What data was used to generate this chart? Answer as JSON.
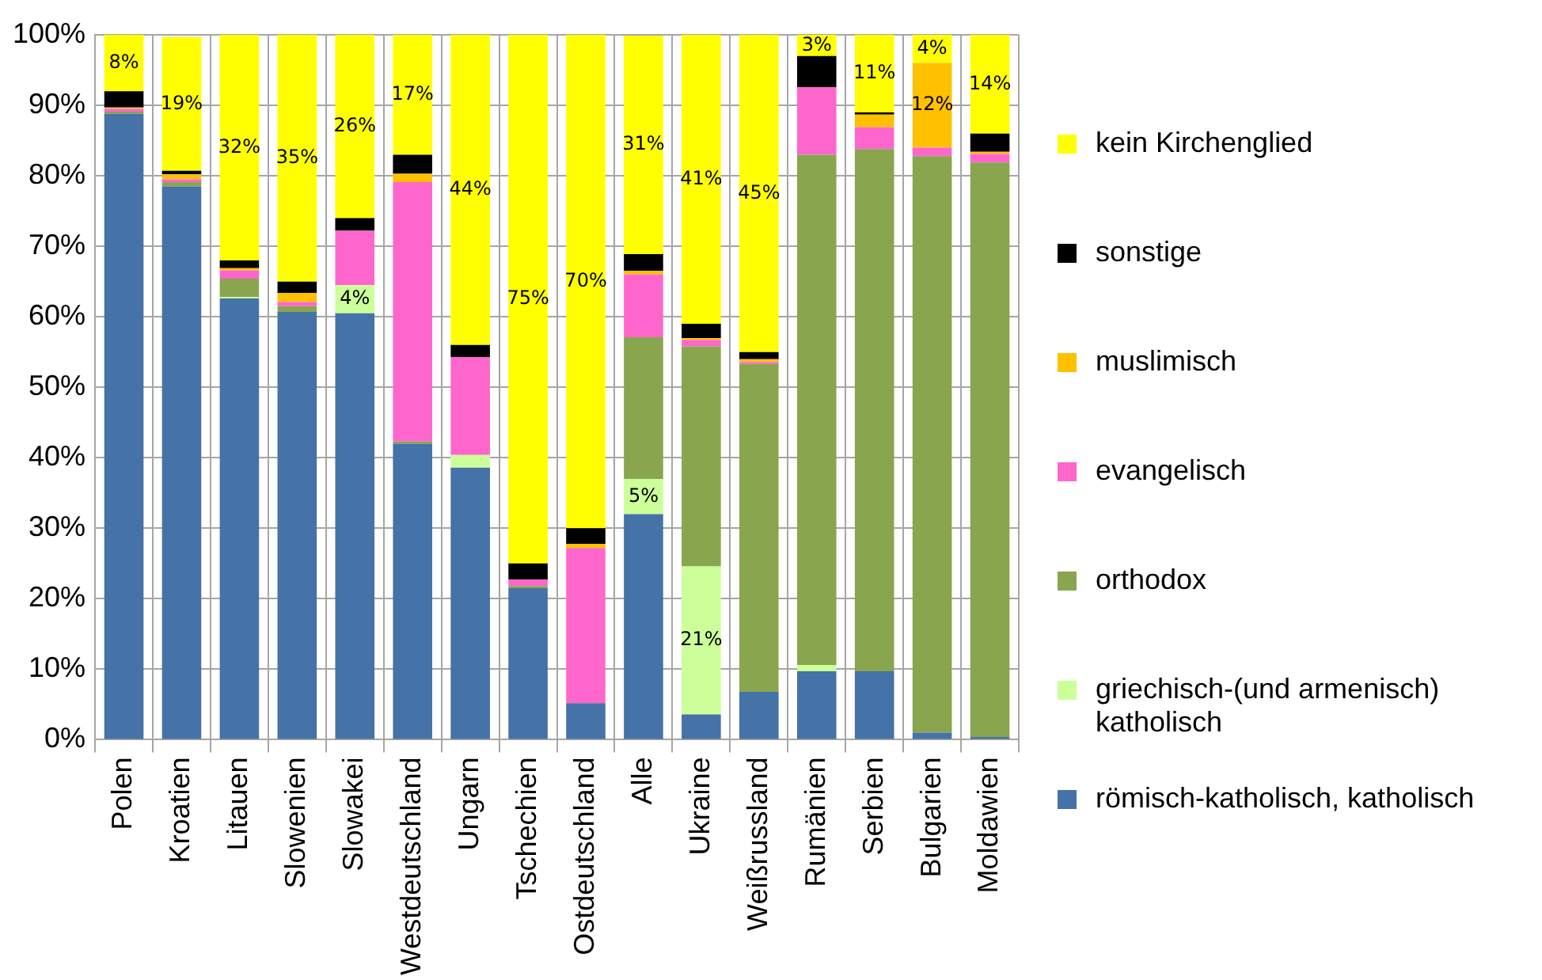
{
  "chart_data": {
    "type": "bar",
    "stacked": true,
    "categories": [
      "Polen",
      "Kroatien",
      "Litauen",
      "Slowenien",
      "Slowakei",
      "Westdeutschland",
      "Ungarn",
      "Tschechien",
      "Ostdeutschland",
      "Alle",
      "Ukraine",
      "Weißrussland",
      "Rumänien",
      "Serbien",
      "Bulgarien",
      "Moldawien"
    ],
    "ylim": [
      0,
      100
    ],
    "yticks": [
      {
        "value": 0,
        "label": "0%"
      },
      {
        "value": 10,
        "label": "10%"
      },
      {
        "value": 20,
        "label": "20%"
      },
      {
        "value": 30,
        "label": "30%"
      },
      {
        "value": 40,
        "label": "40%"
      },
      {
        "value": 50,
        "label": "50%"
      },
      {
        "value": 60,
        "label": "60%"
      },
      {
        "value": 70,
        "label": "70%"
      },
      {
        "value": 80,
        "label": "80%"
      },
      {
        "value": 90,
        "label": "90%"
      },
      {
        "value": 100,
        "label": "100%"
      }
    ],
    "grid": true,
    "legend": "right",
    "series": [
      {
        "name": "römisch-katholisch, katholisch",
        "color": "#4572a7",
        "values": [
          88.8,
          78.5,
          62.6,
          60.7,
          60.5,
          42,
          38.6,
          21.5,
          5.2,
          32,
          3.6,
          6.8,
          9.7,
          9.7,
          1,
          0.4
        ]
      },
      {
        "name": "griechisch-(und armenisch) katholisch",
        "color": "#ccff99",
        "values": [
          0,
          0,
          0.2,
          0,
          4,
          0,
          1.8,
          0,
          0,
          5,
          21,
          0,
          0.9,
          0,
          0,
          0
        ],
        "value_labels": [
          null,
          null,
          null,
          null,
          "4%",
          null,
          null,
          null,
          null,
          "5%",
          "21%",
          null,
          null,
          null,
          null,
          null
        ]
      },
      {
        "name": "orthodox",
        "color": "#89a54e",
        "values": [
          0.3,
          0.6,
          2.6,
          0.8,
          0,
          0.3,
          0,
          0.3,
          0,
          20.1,
          31.2,
          46.5,
          72.4,
          74.1,
          81.8,
          81.5
        ]
      },
      {
        "name": "evangelisch",
        "color": "#ff66cc",
        "values": [
          0.4,
          0.4,
          1.2,
          0.6,
          7.7,
          36.8,
          13.9,
          0.9,
          22,
          8.9,
          0.9,
          0.3,
          9.6,
          3.1,
          1.2,
          1.2
        ]
      },
      {
        "name": "muslimisch",
        "color": "#ffc000",
        "values": [
          0.2,
          0.7,
          0.3,
          1.3,
          0,
          1.2,
          0,
          0,
          0.6,
          0.5,
          0.3,
          0.4,
          0,
          1.8,
          12,
          0.3
        ],
        "value_labels": [
          null,
          null,
          null,
          null,
          null,
          null,
          null,
          null,
          null,
          null,
          null,
          null,
          null,
          null,
          "12%",
          null
        ]
      },
      {
        "name": "sonstige",
        "color": "#000000",
        "values": [
          2.3,
          0.5,
          1.1,
          1.6,
          1.8,
          2.7,
          1.7,
          2.3,
          2.2,
          2.4,
          2,
          1,
          4.4,
          0.3,
          0,
          2.6
        ]
      },
      {
        "name": "kein Kirchenglied",
        "color": "#ffff00",
        "values": [
          8,
          19,
          32,
          35,
          26,
          17,
          44,
          75,
          70,
          31,
          41,
          45,
          3,
          11,
          4,
          14
        ],
        "value_labels": [
          "8%",
          "19%",
          "32%",
          "35%",
          "26%",
          "17%",
          "44%",
          "75%",
          "70%",
          "31%",
          "41%",
          "45%",
          "3%",
          "11%",
          "4%",
          "14%"
        ]
      }
    ]
  }
}
